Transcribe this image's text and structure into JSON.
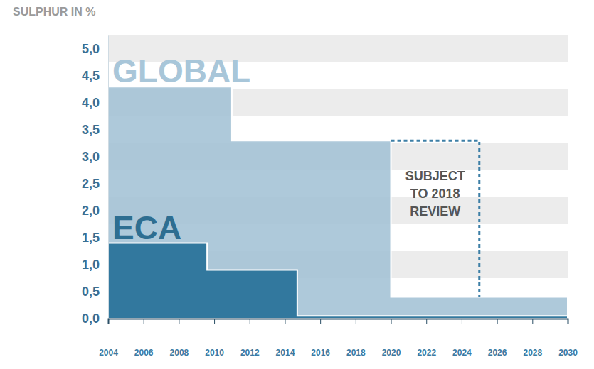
{
  "chart_data": {
    "type": "area",
    "y_label": "SULPHUR IN %",
    "xlim": [
      2004,
      2030
    ],
    "xticks": [
      2004,
      2006,
      2008,
      2010,
      2012,
      2014,
      2016,
      2018,
      2020,
      2022,
      2024,
      2026,
      2028,
      2030
    ],
    "ylim": [
      0,
      5.25
    ],
    "yticks": [
      {
        "value": 0,
        "label": "0,0"
      },
      {
        "value": 0.5,
        "label": "0,5"
      },
      {
        "value": 1,
        "label": "1,0"
      },
      {
        "value": 1.5,
        "label": "1,5"
      },
      {
        "value": 2,
        "label": "2,0"
      },
      {
        "value": 2.5,
        "label": "2,5"
      },
      {
        "value": 3,
        "label": "3,0"
      },
      {
        "value": 3.5,
        "label": "3,5"
      },
      {
        "value": 4,
        "label": "4,0"
      },
      {
        "value": 4.5,
        "label": "4,5"
      },
      {
        "value": 5,
        "label": "5,0"
      }
    ],
    "grid": true,
    "series": [
      {
        "name": "GLOBAL",
        "color": "#a3c2d5",
        "line_style": "step",
        "x": [
          2004,
          2011,
          2020,
          2030
        ],
        "values": [
          4.3,
          3.3,
          0.4,
          0.4
        ]
      },
      {
        "name": "ECA",
        "color": "#32789e",
        "line_style": "step",
        "x": [
          2004,
          2009.6,
          2014.7,
          2030
        ],
        "values": [
          1.4,
          0.9,
          0.05,
          0.05
        ]
      }
    ],
    "review_box": {
      "lines": [
        "SUBJECT",
        "TO 2018",
        "REVIEW"
      ],
      "x": [
        2020,
        2025
      ],
      "y": [
        0.4,
        3.3
      ],
      "color": "#3d7fa6",
      "line_style": "dashed"
    }
  }
}
